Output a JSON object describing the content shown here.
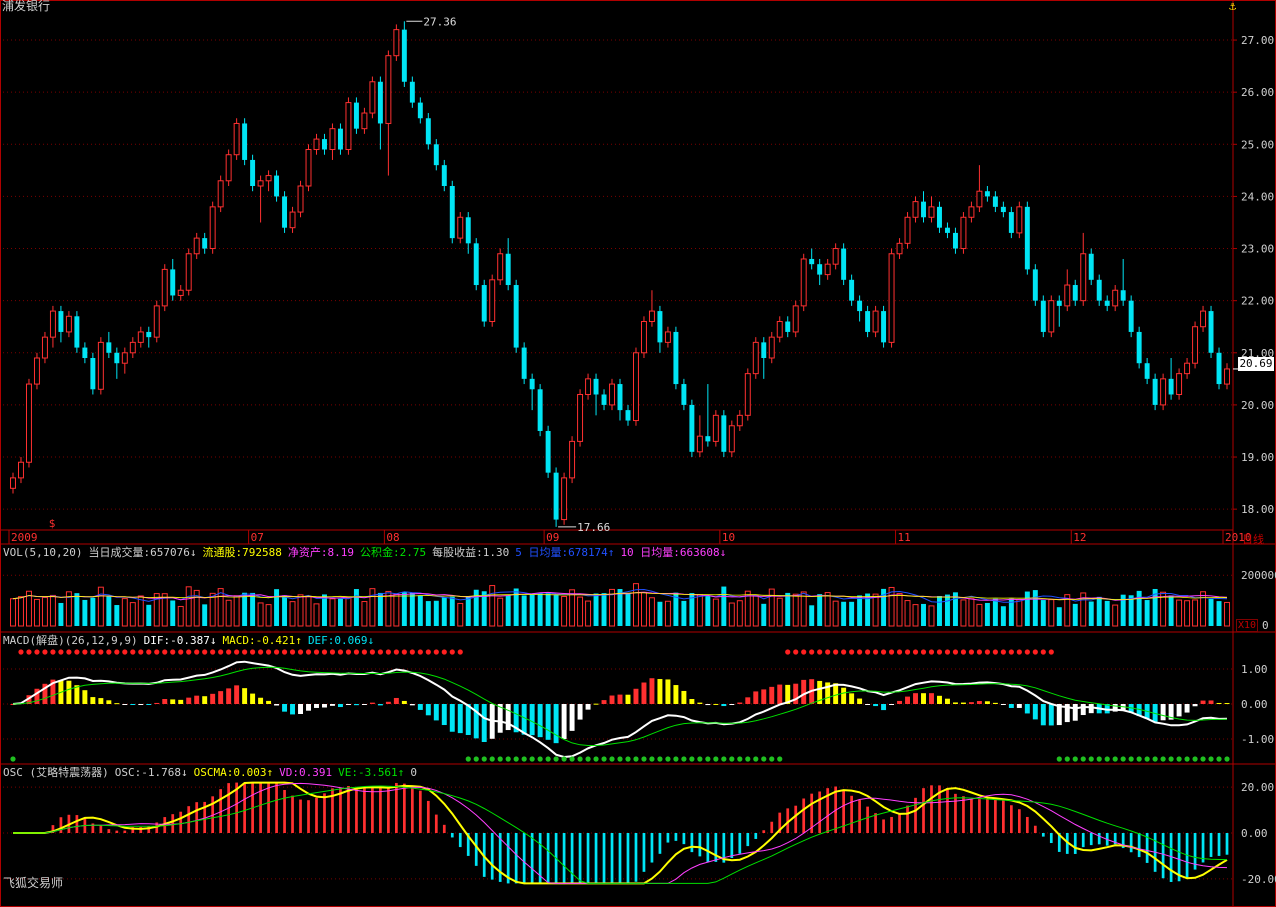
{
  "window": {
    "stock_name": "浦发银行",
    "anchor_icon": "anchor-icon",
    "period_label": "日线",
    "unit_label": "X10",
    "watermark": "飞狐交易师",
    "current_price": "20.69"
  },
  "colors": {
    "background": "#000000",
    "up": "#ff3030",
    "down": "#00e5f5",
    "grid": "#7a0000",
    "axis": "#b00000",
    "white": "#ffffff",
    "yellow": "#ffff00",
    "magenta": "#ff40ff",
    "green": "#00e000",
    "blue": "#2050ff"
  },
  "price_panel": {
    "y_ticks": [
      "27.00",
      "26.00",
      "25.00",
      "24.00",
      "23.00",
      "22.00",
      "21.00",
      "20.00",
      "19.00",
      "18.00"
    ],
    "high_label": "27.36",
    "low_label": "17.66",
    "x_labels": [
      "2009",
      "07",
      "08",
      "09",
      "10",
      "11",
      "12",
      "2010"
    ],
    "marker_text": "$"
  },
  "vol_panel": {
    "header": [
      {
        "text": "VOL(5,10,20)",
        "color": "#cfcfcf"
      },
      {
        "text": "当日成交量:657076↓",
        "color": "#cfcfcf"
      },
      {
        "text": "流通股:792588",
        "color": "#ffff00"
      },
      {
        "text": "净资产:8.19",
        "color": "#ff40ff"
      },
      {
        "text": "公积金:2.75",
        "color": "#00e000"
      },
      {
        "text": "每股收益:1.30",
        "color": "#cfcfcf"
      },
      {
        "text": "5 日均量:678174↑",
        "color": "#2050ff"
      },
      {
        "text": "10 日均量:663608↓",
        "color": "#ff40ff"
      }
    ],
    "y_ticks": [
      "200000",
      "0"
    ]
  },
  "macd_panel": {
    "header": [
      {
        "text": "MACD(解盘)(26,12,9,9)",
        "color": "#cfcfcf"
      },
      {
        "text": "DIF:-0.387↓",
        "color": "#ffffff"
      },
      {
        "text": "MACD:-0.421↑",
        "color": "#ffff00"
      },
      {
        "text": "DEF:0.069↓",
        "color": "#00e5f5"
      }
    ],
    "y_ticks": [
      "1.00",
      "0.00",
      "-1.00"
    ]
  },
  "osc_panel": {
    "header": [
      {
        "text": "OSC (艾略特震荡器)",
        "color": "#cfcfcf"
      },
      {
        "text": "OSC:-1.768↓",
        "color": "#cfcfcf"
      },
      {
        "text": "OSCMA:0.003↑",
        "color": "#ffff00"
      },
      {
        "text": "VD:0.391",
        "color": "#ff40ff"
      },
      {
        "text": "VE:-3.561↑",
        "color": "#00e000"
      },
      {
        "text": "0",
        "color": "#cfcfcf"
      }
    ],
    "y_ticks": [
      "20.00",
      "0.00",
      "-20.00"
    ]
  },
  "chart_data": {
    "type": "candlestick",
    "title": "浦发银行",
    "period": "日线",
    "price_axis": {
      "ylim": [
        17.6,
        27.5
      ],
      "ticks": [
        18,
        19,
        20,
        21,
        22,
        23,
        24,
        25,
        26,
        27
      ]
    },
    "x_month_labels": [
      "2009",
      "07",
      "08",
      "09",
      "10",
      "11",
      "12",
      "2010"
    ],
    "annotations": {
      "high": 27.36,
      "low": 17.66,
      "last": 20.69
    },
    "candles": [
      [
        18.4,
        18.6,
        18.3,
        18.7
      ],
      [
        18.6,
        18.9,
        18.5,
        19.0
      ],
      [
        18.9,
        20.4,
        18.8,
        20.5
      ],
      [
        20.4,
        20.9,
        20.3,
        21.0
      ],
      [
        20.9,
        21.3,
        20.8,
        21.4
      ],
      [
        21.3,
        21.8,
        21.1,
        21.9
      ],
      [
        21.8,
        21.4,
        21.2,
        21.9
      ],
      [
        21.4,
        21.7,
        21.3,
        21.8
      ],
      [
        21.7,
        21.1,
        21.0,
        21.8
      ],
      [
        21.1,
        20.9,
        20.8,
        21.2
      ],
      [
        20.9,
        20.3,
        20.2,
        21.0
      ],
      [
        20.3,
        21.2,
        20.2,
        21.3
      ],
      [
        21.2,
        21.0,
        20.9,
        21.4
      ],
      [
        21.0,
        20.8,
        20.5,
        21.1
      ],
      [
        20.8,
        21.0,
        20.6,
        21.1
      ],
      [
        21.0,
        21.2,
        20.9,
        21.3
      ],
      [
        21.2,
        21.4,
        21.1,
        21.5
      ],
      [
        21.4,
        21.3,
        21.1,
        21.5
      ],
      [
        21.3,
        21.9,
        21.2,
        22.0
      ],
      [
        21.9,
        22.6,
        21.8,
        22.7
      ],
      [
        22.6,
        22.1,
        22.0,
        22.8
      ],
      [
        22.1,
        22.2,
        22.0,
        22.3
      ],
      [
        22.2,
        22.9,
        22.1,
        23.0
      ],
      [
        22.9,
        23.2,
        22.8,
        23.3
      ],
      [
        23.2,
        23.0,
        22.9,
        23.3
      ],
      [
        23.0,
        23.8,
        22.9,
        23.9
      ],
      [
        23.8,
        24.3,
        23.7,
        24.4
      ],
      [
        24.3,
        24.8,
        24.2,
        24.9
      ],
      [
        24.8,
        25.4,
        24.7,
        25.5
      ],
      [
        25.4,
        24.7,
        24.6,
        25.5
      ],
      [
        24.7,
        24.2,
        24.1,
        24.8
      ],
      [
        24.2,
        24.3,
        23.5,
        24.4
      ],
      [
        24.3,
        24.4,
        24.1,
        24.5
      ],
      [
        24.4,
        24.0,
        23.9,
        24.5
      ],
      [
        24.0,
        23.4,
        23.3,
        24.1
      ],
      [
        23.4,
        23.7,
        23.3,
        23.8
      ],
      [
        23.7,
        24.2,
        23.6,
        24.3
      ],
      [
        24.2,
        24.9,
        24.1,
        25.0
      ],
      [
        24.9,
        25.1,
        24.8,
        25.2
      ],
      [
        25.1,
        24.9,
        24.8,
        25.2
      ],
      [
        24.9,
        25.3,
        24.7,
        25.4
      ],
      [
        25.3,
        24.9,
        24.8,
        25.4
      ],
      [
        24.9,
        25.8,
        24.8,
        25.9
      ],
      [
        25.8,
        25.3,
        25.2,
        25.9
      ],
      [
        25.3,
        25.6,
        25.2,
        25.7
      ],
      [
        25.6,
        26.2,
        25.5,
        26.3
      ],
      [
        26.2,
        25.4,
        24.9,
        26.3
      ],
      [
        25.4,
        26.7,
        24.4,
        26.8
      ],
      [
        26.7,
        27.2,
        26.6,
        27.3
      ],
      [
        27.2,
        26.2,
        26.1,
        27.36
      ],
      [
        26.2,
        25.8,
        25.7,
        26.3
      ],
      [
        25.8,
        25.5,
        25.4,
        25.9
      ],
      [
        25.5,
        25.0,
        24.9,
        25.6
      ],
      [
        25.0,
        24.6,
        24.5,
        25.1
      ],
      [
        24.6,
        24.2,
        24.1,
        24.7
      ],
      [
        24.2,
        23.2,
        23.1,
        24.3
      ],
      [
        23.2,
        23.6,
        23.1,
        23.7
      ],
      [
        23.6,
        23.1,
        22.9,
        23.7
      ],
      [
        23.1,
        22.3,
        22.2,
        23.2
      ],
      [
        22.3,
        21.6,
        21.5,
        22.4
      ],
      [
        21.6,
        22.4,
        21.5,
        22.5
      ],
      [
        22.4,
        22.9,
        22.3,
        23.0
      ],
      [
        22.9,
        22.3,
        22.2,
        23.2
      ],
      [
        22.3,
        21.1,
        21.0,
        22.4
      ],
      [
        21.1,
        20.5,
        20.4,
        21.2
      ],
      [
        20.5,
        20.3,
        19.9,
        20.6
      ],
      [
        20.3,
        19.5,
        19.4,
        20.4
      ],
      [
        19.5,
        18.7,
        18.6,
        19.6
      ],
      [
        18.7,
        17.8,
        17.66,
        18.8
      ],
      [
        17.8,
        18.6,
        17.7,
        18.7
      ],
      [
        18.6,
        19.3,
        18.5,
        19.4
      ],
      [
        19.3,
        20.2,
        19.2,
        20.3
      ],
      [
        20.2,
        20.5,
        20.1,
        20.6
      ],
      [
        20.5,
        20.2,
        19.8,
        20.6
      ],
      [
        20.2,
        20.0,
        19.9,
        20.3
      ],
      [
        20.0,
        20.4,
        19.9,
        20.5
      ],
      [
        20.4,
        19.9,
        19.7,
        20.5
      ],
      [
        19.9,
        19.7,
        19.6,
        20.0
      ],
      [
        19.7,
        21.0,
        19.6,
        21.1
      ],
      [
        21.0,
        21.6,
        20.9,
        21.7
      ],
      [
        21.6,
        21.8,
        21.5,
        22.2
      ],
      [
        21.8,
        21.2,
        21.0,
        21.9
      ],
      [
        21.2,
        21.4,
        21.1,
        21.5
      ],
      [
        21.4,
        20.4,
        20.3,
        21.5
      ],
      [
        20.4,
        20.0,
        19.9,
        20.5
      ],
      [
        20.0,
        19.1,
        19.0,
        20.1
      ],
      [
        19.1,
        19.4,
        19.0,
        19.8
      ],
      [
        19.4,
        19.3,
        19.2,
        20.4
      ],
      [
        19.3,
        19.8,
        19.2,
        19.9
      ],
      [
        19.8,
        19.1,
        19.0,
        19.9
      ],
      [
        19.1,
        19.6,
        19.0,
        19.7
      ],
      [
        19.6,
        19.8,
        19.5,
        19.9
      ],
      [
        19.8,
        20.6,
        19.7,
        20.7
      ],
      [
        20.6,
        21.2,
        20.5,
        21.3
      ],
      [
        21.2,
        20.9,
        20.5,
        21.3
      ],
      [
        20.9,
        21.3,
        20.8,
        21.4
      ],
      [
        21.3,
        21.6,
        21.2,
        21.7
      ],
      [
        21.6,
        21.4,
        21.3,
        21.7
      ],
      [
        21.4,
        21.9,
        21.3,
        22.0
      ],
      [
        21.9,
        22.8,
        21.8,
        22.9
      ],
      [
        22.8,
        22.7,
        22.6,
        23.0
      ],
      [
        22.7,
        22.5,
        22.3,
        22.8
      ],
      [
        22.5,
        22.7,
        22.4,
        22.8
      ],
      [
        22.7,
        23.0,
        22.6,
        23.1
      ],
      [
        23.0,
        22.4,
        22.3,
        23.1
      ],
      [
        22.4,
        22.0,
        21.9,
        22.5
      ],
      [
        22.0,
        21.8,
        21.6,
        22.1
      ],
      [
        21.8,
        21.4,
        21.3,
        21.9
      ],
      [
        21.4,
        21.8,
        21.3,
        21.9
      ],
      [
        21.8,
        21.2,
        21.1,
        21.9
      ],
      [
        21.2,
        22.9,
        21.1,
        23.0
      ],
      [
        22.9,
        23.1,
        22.8,
        23.2
      ],
      [
        23.1,
        23.6,
        23.0,
        23.7
      ],
      [
        23.6,
        23.9,
        23.5,
        24.0
      ],
      [
        23.9,
        23.6,
        23.5,
        24.1
      ],
      [
        23.6,
        23.8,
        23.5,
        24.0
      ],
      [
        23.8,
        23.4,
        23.3,
        23.9
      ],
      [
        23.4,
        23.3,
        23.2,
        23.5
      ],
      [
        23.3,
        23.0,
        22.9,
        23.4
      ],
      [
        23.0,
        23.6,
        22.9,
        23.7
      ],
      [
        23.6,
        23.8,
        23.5,
        23.9
      ],
      [
        23.8,
        24.1,
        23.7,
        24.6
      ],
      [
        24.1,
        24.0,
        23.9,
        24.2
      ],
      [
        24.0,
        23.8,
        23.7,
        24.1
      ],
      [
        23.8,
        23.7,
        23.6,
        23.9
      ],
      [
        23.7,
        23.3,
        23.2,
        23.8
      ],
      [
        23.3,
        23.8,
        23.2,
        23.9
      ],
      [
        23.8,
        22.6,
        22.5,
        23.9
      ],
      [
        22.6,
        22.0,
        21.9,
        22.7
      ],
      [
        22.0,
        21.4,
        21.3,
        22.1
      ],
      [
        21.4,
        22.0,
        21.3,
        22.1
      ],
      [
        22.0,
        21.9,
        21.5,
        22.1
      ],
      [
        21.9,
        22.3,
        21.8,
        22.6
      ],
      [
        22.3,
        22.0,
        21.9,
        22.4
      ],
      [
        22.0,
        22.9,
        21.9,
        23.3
      ],
      [
        22.9,
        22.4,
        22.3,
        23.0
      ],
      [
        22.4,
        22.0,
        21.9,
        22.5
      ],
      [
        22.0,
        21.9,
        21.8,
        22.1
      ],
      [
        21.9,
        22.2,
        21.8,
        22.3
      ],
      [
        22.2,
        22.0,
        21.9,
        22.8
      ],
      [
        22.0,
        21.4,
        21.3,
        22.1
      ],
      [
        21.4,
        20.8,
        20.7,
        21.5
      ],
      [
        20.8,
        20.5,
        20.4,
        20.9
      ],
      [
        20.5,
        20.0,
        19.9,
        20.6
      ],
      [
        20.0,
        20.5,
        19.9,
        20.6
      ],
      [
        20.5,
        20.2,
        20.1,
        20.9
      ],
      [
        20.2,
        20.6,
        20.1,
        20.7
      ],
      [
        20.6,
        20.8,
        20.5,
        20.9
      ],
      [
        20.8,
        21.5,
        20.7,
        21.6
      ],
      [
        21.5,
        21.8,
        21.4,
        21.9
      ],
      [
        21.8,
        21.0,
        20.9,
        21.9
      ],
      [
        21.0,
        20.4,
        20.3,
        21.1
      ],
      [
        20.4,
        20.69,
        20.3,
        20.8
      ]
    ],
    "volume": {
      "ticks": [
        0,
        200000
      ],
      "multiplier": "X10",
      "last": 657076,
      "ma5": 678174,
      "ma10": 663608
    },
    "macd": {
      "params": [
        26,
        12,
        9,
        9
      ],
      "dif": -0.387,
      "macd": -0.421,
      "def": 0.069,
      "ylim": [
        -1.6,
        1.6
      ],
      "ticks": [
        1.0,
        0.0,
        -1.0
      ]
    },
    "osc": {
      "osc": -1.768,
      "oscma": 0.003,
      "vd": 0.391,
      "ve": -3.561,
      "ylim": [
        -24,
        24
      ],
      "ticks": [
        20,
        0,
        -20
      ]
    }
  }
}
